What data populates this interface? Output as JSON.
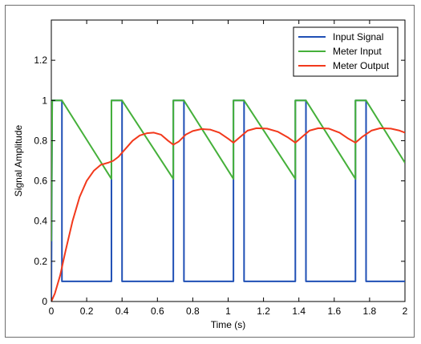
{
  "chart_data": {
    "type": "line",
    "title": "",
    "xlabel": "Time (s)",
    "ylabel": "Signal Amplitude",
    "xlim": [
      0,
      2
    ],
    "ylim": [
      0,
      1.4
    ],
    "xticks": [
      "0",
      "0.2",
      "0.4",
      "0.6",
      "0.8",
      "1",
      "1.2",
      "1.4",
      "1.6",
      "1.8",
      "2"
    ],
    "yticks": [
      "0",
      "0.2",
      "0.4",
      "0.6",
      "0.8",
      "1",
      "1.2"
    ],
    "grid": false,
    "legend_position": "top-right",
    "series": [
      {
        "name": "Input Signal",
        "color": "#1f4fb5",
        "points": [
          [
            0,
            0
          ],
          [
            0.005,
            1
          ],
          [
            0.06,
            1
          ],
          [
            0.06,
            0.1
          ],
          [
            0.34,
            0.1
          ],
          [
            0.34,
            1
          ],
          [
            0.4,
            1
          ],
          [
            0.4,
            0.1
          ],
          [
            0.69,
            0.1
          ],
          [
            0.69,
            1
          ],
          [
            0.75,
            1
          ],
          [
            0.75,
            0.1
          ],
          [
            1.03,
            0.1
          ],
          [
            1.03,
            1
          ],
          [
            1.09,
            1
          ],
          [
            1.09,
            0.1
          ],
          [
            1.38,
            0.1
          ],
          [
            1.38,
            1
          ],
          [
            1.44,
            1
          ],
          [
            1.44,
            0.1
          ],
          [
            1.72,
            0.1
          ],
          [
            1.72,
            1
          ],
          [
            1.78,
            1
          ],
          [
            1.78,
            0.1
          ],
          [
            2.0,
            0.1
          ]
        ]
      },
      {
        "name": "Meter Input",
        "color": "#45b03a",
        "points": [
          [
            0,
            0.3
          ],
          [
            0.005,
            1
          ],
          [
            0.06,
            1
          ],
          [
            0.34,
            0.61
          ],
          [
            0.34,
            1
          ],
          [
            0.4,
            1
          ],
          [
            0.69,
            0.61
          ],
          [
            0.69,
            1
          ],
          [
            0.75,
            1
          ],
          [
            1.03,
            0.61
          ],
          [
            1.03,
            1
          ],
          [
            1.09,
            1
          ],
          [
            1.38,
            0.61
          ],
          [
            1.38,
            1
          ],
          [
            1.44,
            1
          ],
          [
            1.72,
            0.61
          ],
          [
            1.72,
            1
          ],
          [
            1.78,
            1
          ],
          [
            2.0,
            0.69
          ]
        ]
      },
      {
        "name": "Meter Output",
        "color": "#f2391c",
        "points": [
          [
            0,
            0
          ],
          [
            0.02,
            0.04
          ],
          [
            0.05,
            0.13
          ],
          [
            0.08,
            0.25
          ],
          [
            0.12,
            0.4
          ],
          [
            0.16,
            0.52
          ],
          [
            0.2,
            0.6
          ],
          [
            0.24,
            0.65
          ],
          [
            0.28,
            0.68
          ],
          [
            0.32,
            0.69
          ],
          [
            0.35,
            0.7
          ],
          [
            0.38,
            0.72
          ],
          [
            0.42,
            0.76
          ],
          [
            0.46,
            0.8
          ],
          [
            0.5,
            0.826
          ],
          [
            0.54,
            0.837
          ],
          [
            0.58,
            0.84
          ],
          [
            0.62,
            0.83
          ],
          [
            0.66,
            0.8
          ],
          [
            0.69,
            0.78
          ],
          [
            0.72,
            0.795
          ],
          [
            0.76,
            0.83
          ],
          [
            0.8,
            0.848
          ],
          [
            0.85,
            0.858
          ],
          [
            0.9,
            0.855
          ],
          [
            0.95,
            0.84
          ],
          [
            1.0,
            0.81
          ],
          [
            1.03,
            0.79
          ],
          [
            1.07,
            0.82
          ],
          [
            1.11,
            0.85
          ],
          [
            1.16,
            0.862
          ],
          [
            1.22,
            0.86
          ],
          [
            1.28,
            0.845
          ],
          [
            1.34,
            0.815
          ],
          [
            1.38,
            0.79
          ],
          [
            1.42,
            0.82
          ],
          [
            1.46,
            0.85
          ],
          [
            1.51,
            0.862
          ],
          [
            1.57,
            0.86
          ],
          [
            1.63,
            0.84
          ],
          [
            1.68,
            0.81
          ],
          [
            1.72,
            0.79
          ],
          [
            1.76,
            0.82
          ],
          [
            1.81,
            0.85
          ],
          [
            1.86,
            0.862
          ],
          [
            1.92,
            0.86
          ],
          [
            1.97,
            0.85
          ],
          [
            2.0,
            0.84
          ]
        ]
      }
    ]
  }
}
